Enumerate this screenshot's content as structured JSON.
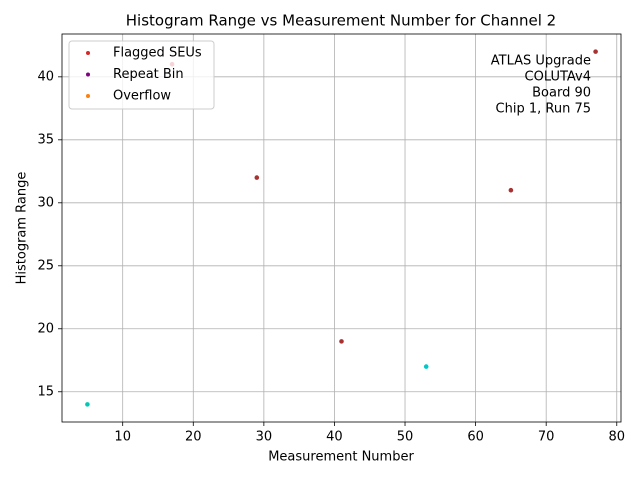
{
  "chart_data": {
    "type": "scatter",
    "title": "Histogram Range vs Measurement Number for Channel 2",
    "x_label": "Measurement Number",
    "y_label": "Histogram Range",
    "x": [
      5,
      17,
      29,
      41,
      53,
      65,
      77
    ],
    "y": [
      14,
      41,
      32,
      19,
      17,
      31,
      42
    ],
    "point_colors": [
      "#00c8b4",
      "#d62728",
      "#a83232",
      "#a83232",
      "#00c8c8",
      "#a83232",
      "#a83232"
    ],
    "series": [
      {
        "name": "Flagged SEUs",
        "color": "#d62728",
        "x": [],
        "y": []
      },
      {
        "name": "Repeat Bin",
        "color": "#800080",
        "x": [],
        "y": []
      },
      {
        "name": "Overflow",
        "color": "#ff7f0e",
        "x": [],
        "y": []
      }
    ],
    "annotation": [
      "ATLAS Upgrade",
      "COLUTAv4",
      "Board 90",
      "Chip 1, Run 75"
    ],
    "xlim": [
      1.4,
      80.6
    ],
    "ylim": [
      12.6,
      43.4
    ],
    "xticks": [
      10,
      20,
      30,
      40,
      50,
      60,
      70,
      80
    ],
    "yticks": [
      15,
      20,
      25,
      30,
      35,
      40
    ],
    "grid": true,
    "legend": "upper left"
  }
}
